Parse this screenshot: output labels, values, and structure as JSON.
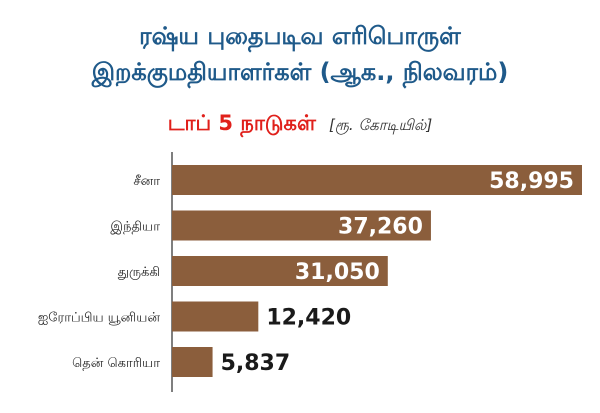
{
  "header": {
    "title_line1": "ரஷ்ய புதைபடிவ எரிபொருள்",
    "title_line2": "இறக்குமதியாளர்கள் (ஆக., நிலவரம்)",
    "subtitle": "டாப் 5 நாடுகள்",
    "unit": "[ரூ. கோடியில்]"
  },
  "colors": {
    "bar": "#8b5e3c",
    "axis": "#555555",
    "title": "#1f5a8a",
    "subtitle": "#e0201b"
  },
  "chart_data": {
    "type": "bar",
    "orientation": "horizontal",
    "title": "ரஷ்ய புதைபடிவ எரிபொருள் இறக்குமதியாளர்கள் (ஆக., நிலவரம்)",
    "subtitle": "டாப் 5 நாடுகள்",
    "unit": "[ரூ. கோடியில்]",
    "categories": [
      "சீனா",
      "இந்தியா",
      "துருக்கி",
      "ஐரோப்பிய யூனியன்",
      "தென் கொரியா"
    ],
    "values": [
      58995,
      37260,
      31050,
      12420,
      5837
    ],
    "labels": [
      "58,995",
      "37,260",
      "31,050",
      "12,420",
      "5,837"
    ],
    "xlim": [
      0,
      58995
    ],
    "grid": false,
    "legend": "none"
  }
}
